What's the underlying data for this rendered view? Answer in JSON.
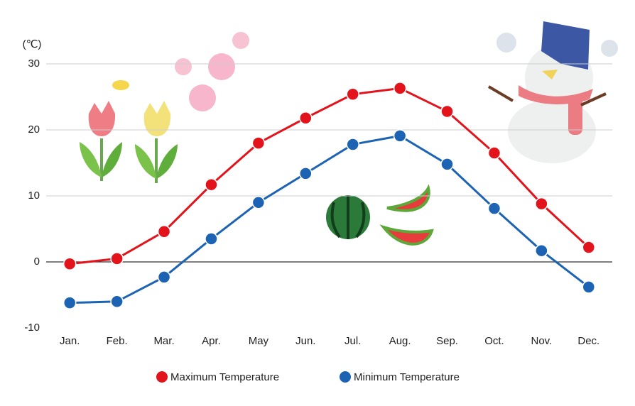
{
  "chart_data": {
    "type": "line",
    "unit_label": "(℃)",
    "categories": [
      "Jan.",
      "Feb.",
      "Mar.",
      "Apr.",
      "May",
      "Jun.",
      "Jul.",
      "Aug.",
      "Sep.",
      "Oct.",
      "Nov.",
      "Dec."
    ],
    "series": [
      {
        "name": "Maximum Temperature",
        "color": "#e3131c",
        "values": [
          -0.3,
          0.5,
          4.6,
          11.7,
          18.0,
          21.8,
          25.4,
          26.3,
          22.8,
          16.5,
          8.8,
          2.2
        ]
      },
      {
        "name": "Minimum Temperature",
        "color": "#1c63b3",
        "values": [
          -6.2,
          -6.0,
          -2.3,
          3.5,
          9.0,
          13.4,
          17.8,
          19.1,
          14.8,
          8.1,
          1.7,
          -3.8
        ]
      }
    ],
    "ylim": [
      -10,
      30
    ],
    "yticks": [
      -10,
      0,
      10,
      20,
      30
    ],
    "grid": true
  }
}
